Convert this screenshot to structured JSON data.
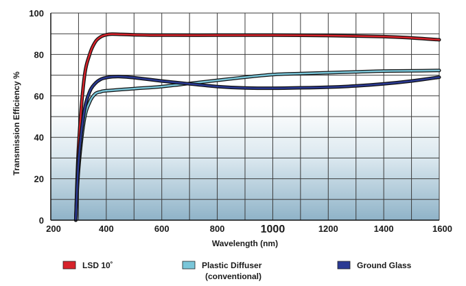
{
  "chart_data": {
    "type": "line",
    "title": "",
    "xlabel": "Wavelength (nm)",
    "ylabel": "Transmission Efficiency %",
    "xlim": [
      200,
      1600
    ],
    "ylim": [
      0,
      100
    ],
    "x_ticks": [
      {
        "value": 200,
        "label": "200"
      },
      {
        "value": 400,
        "label": "400"
      },
      {
        "value": 600,
        "label": "600"
      },
      {
        "value": 800,
        "label": "800"
      },
      {
        "value": 1000,
        "label": "1000"
      },
      {
        "value": 1200,
        "label": "1200"
      },
      {
        "value": 1400,
        "label": "1400"
      },
      {
        "value": 1600,
        "label": "1600"
      }
    ],
    "y_ticks": [
      {
        "value": 0,
        "label": "0"
      },
      {
        "value": 20,
        "label": "20"
      },
      {
        "value": 40,
        "label": "40"
      },
      {
        "value": 60,
        "label": "60"
      },
      {
        "value": 80,
        "label": "80"
      },
      {
        "value": 100,
        "label": "100"
      }
    ],
    "grid": true,
    "legend_position": "bottom",
    "series": [
      {
        "name": "LSD 10˚",
        "color": "#d7232b",
        "x": [
          290,
          300,
          320,
          340,
          360,
          380,
          400,
          420,
          450,
          500,
          600,
          800,
          1000,
          1200,
          1400,
          1500,
          1600
        ],
        "y": [
          0,
          35,
          68,
          80,
          86,
          88.5,
          89.5,
          89.8,
          89.7,
          89.5,
          89.3,
          89.3,
          89.3,
          89.1,
          88.6,
          88.0,
          87.1
        ]
      },
      {
        "name": "Plastic Diffuser",
        "name_line2": "(conventional)",
        "color": "#7ac6d9",
        "x": [
          290,
          300,
          320,
          340,
          360,
          380,
          400,
          500,
          600,
          700,
          800,
          900,
          1000,
          1100,
          1200,
          1300,
          1400,
          1500,
          1600
        ],
        "y": [
          0,
          24,
          48,
          57,
          61,
          62,
          62.5,
          63.5,
          64.5,
          66,
          67.5,
          69,
          70.3,
          70.8,
          71.2,
          71.6,
          72,
          72.1,
          72.3
        ]
      },
      {
        "name": "Ground Glass",
        "color": "#2b3a93",
        "x": [
          290,
          300,
          320,
          340,
          360,
          380,
          400,
          420,
          450,
          500,
          600,
          700,
          800,
          900,
          1000,
          1100,
          1200,
          1300,
          1400,
          1500,
          1600
        ],
        "y": [
          0,
          28,
          52,
          62,
          66,
          68,
          68.8,
          69.2,
          69.3,
          68.8,
          67.2,
          65.8,
          64.5,
          63.8,
          63.7,
          63.9,
          64.2,
          64.8,
          65.8,
          67.2,
          69.0
        ]
      }
    ]
  }
}
